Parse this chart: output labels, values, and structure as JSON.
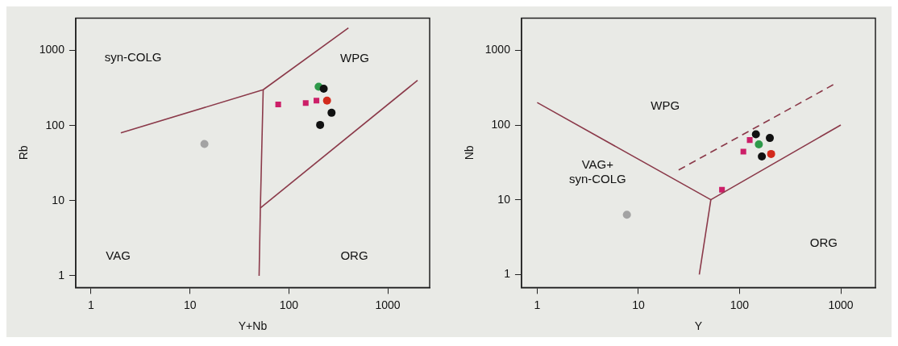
{
  "chart_data": [
    {
      "type": "scatter",
      "xlabel": "Y+Nb",
      "ylabel": "Rb",
      "log": "xy",
      "grid": false,
      "xlim": [
        0.73,
        2650
      ],
      "ylim": [
        0.73,
        2700
      ],
      "xticks": [
        1,
        10,
        100,
        1000
      ],
      "yticks": [
        1,
        10,
        100,
        1000
      ],
      "annotations": [
        "syn-COLG",
        "WPG",
        "VAG",
        "ORG"
      ],
      "series": [
        {
          "type": "line",
          "color": "#8b3a4a",
          "marker": "none",
          "line_style": "solid",
          "x": [
            2,
            55,
            400
          ],
          "values": [
            80,
            300,
            2000
          ]
        },
        {
          "type": "line",
          "color": "#8b3a4a",
          "marker": "none",
          "line_style": "solid",
          "x": [
            55,
            51.5,
            50
          ],
          "values": [
            300,
            8,
            1
          ]
        },
        {
          "type": "line",
          "color": "#8b3a4a",
          "marker": "none",
          "line_style": "solid",
          "x": [
            51.5,
            2000
          ],
          "values": [
            8,
            400
          ]
        },
        {
          "type": "scatter",
          "color": "#a3a3a3",
          "marker": "circle",
          "x": [
            14
          ],
          "values": [
            57
          ]
        },
        {
          "type": "scatter",
          "color": "#cc1f68",
          "marker": "square",
          "x": [
            78,
            148,
            190
          ],
          "values": [
            191,
            200,
            215
          ]
        },
        {
          "type": "scatter",
          "color": "#d22a1c",
          "marker": "circle",
          "x": [
            243
          ],
          "values": [
            215
          ]
        },
        {
          "type": "scatter",
          "color": "#111111",
          "marker": "circle",
          "x": [
            225,
            270,
            207
          ],
          "values": [
            310,
            148,
            102
          ]
        },
        {
          "type": "scatter",
          "color": "#2e9a4a",
          "marker": "circle",
          "x": [
            200
          ],
          "values": [
            330
          ]
        }
      ]
    },
    {
      "type": "scatter",
      "xlabel": "Y",
      "ylabel": "Nb",
      "log": "xy",
      "grid": false,
      "xlim": [
        0.72,
        2200
      ],
      "ylim": [
        0.67,
        2700
      ],
      "xticks": [
        1,
        10,
        100,
        1000
      ],
      "yticks": [
        1,
        10,
        100,
        1000
      ],
      "annotations": [
        "WPG",
        "VAG+\nsyn-COLG",
        "ORG"
      ],
      "series": [
        {
          "type": "line",
          "color": "#8b3a4a",
          "marker": "none",
          "line_style": "solid",
          "x": [
            1,
            52,
            1000
          ],
          "values": [
            200,
            10,
            100
          ]
        },
        {
          "type": "line",
          "color": "#8b3a4a",
          "marker": "none",
          "line_style": "solid",
          "x": [
            52,
            40
          ],
          "values": [
            10,
            1
          ]
        },
        {
          "type": "line",
          "color": "#8b3a4a",
          "marker": "none",
          "line_style": "dashed",
          "x": [
            25,
            870
          ],
          "values": [
            25,
            355
          ]
        },
        {
          "type": "scatter",
          "color": "#a3a3a3",
          "marker": "circle",
          "x": [
            7.7
          ],
          "values": [
            6.3
          ]
        },
        {
          "type": "scatter",
          "color": "#cc1f68",
          "marker": "square",
          "x": [
            67,
            109,
            126
          ],
          "values": [
            13.6,
            44,
            63
          ]
        },
        {
          "type": "scatter",
          "color": "#111111",
          "marker": "circle",
          "x": [
            145,
            199,
            166
          ],
          "values": [
            75,
            67,
            38
          ]
        },
        {
          "type": "scatter",
          "color": "#d22a1c",
          "marker": "circle",
          "x": [
            205
          ],
          "values": [
            41
          ]
        },
        {
          "type": "scatter",
          "color": "#2e9a4a",
          "marker": "circle",
          "x": [
            155
          ],
          "values": [
            55
          ]
        }
      ]
    }
  ]
}
